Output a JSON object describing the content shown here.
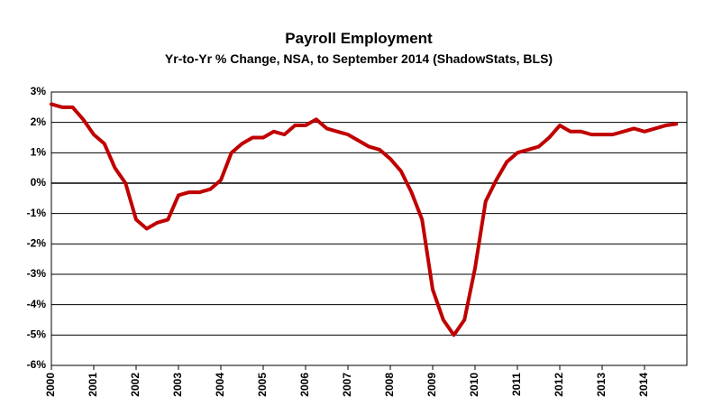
{
  "chart_data": {
    "type": "line",
    "title": "Payroll Employment",
    "subtitle": "Yr-to-Yr % Change, NSA, to September 2014 (ShadowStats, BLS)",
    "x": [
      2000,
      2000.25,
      2000.5,
      2000.75,
      2001,
      2001.25,
      2001.5,
      2001.75,
      2002,
      2002.25,
      2002.5,
      2002.75,
      2003,
      2003.25,
      2003.5,
      2003.75,
      2004,
      2004.25,
      2004.5,
      2004.75,
      2005,
      2005.25,
      2005.5,
      2005.75,
      2006,
      2006.25,
      2006.5,
      2006.75,
      2007,
      2007.25,
      2007.5,
      2007.75,
      2008,
      2008.25,
      2008.5,
      2008.75,
      2009,
      2009.25,
      2009.5,
      2009.75,
      2010,
      2010.25,
      2010.5,
      2010.75,
      2011,
      2011.25,
      2011.5,
      2011.75,
      2012,
      2012.25,
      2012.5,
      2012.75,
      2013,
      2013.25,
      2013.5,
      2013.75,
      2014,
      2014.25,
      2014.5,
      2014.75
    ],
    "series": [
      {
        "color": "#c00000",
        "values": [
          2.6,
          2.5,
          2.5,
          2.1,
          1.6,
          1.3,
          0.5,
          0.0,
          -1.2,
          -1.5,
          -1.3,
          -1.2,
          -0.4,
          -0.3,
          -0.3,
          -0.2,
          0.1,
          1.0,
          1.3,
          1.5,
          1.5,
          1.7,
          1.6,
          1.9,
          1.9,
          2.1,
          1.8,
          1.7,
          1.6,
          1.4,
          1.2,
          1.1,
          0.8,
          0.4,
          -0.3,
          -1.2,
          -3.5,
          -4.5,
          -5.0,
          -4.5,
          -2.8,
          -0.6,
          0.1,
          0.7,
          1.0,
          1.1,
          1.2,
          1.5,
          1.9,
          1.7,
          1.7,
          1.6,
          1.6,
          1.6,
          1.7,
          1.8,
          1.7,
          1.8,
          1.9,
          1.95
        ]
      }
    ],
    "xlim": [
      2000,
      2015
    ],
    "xticks": [
      2000,
      2001,
      2002,
      2003,
      2004,
      2005,
      2006,
      2007,
      2008,
      2009,
      2010,
      2011,
      2012,
      2013,
      2014
    ],
    "ylim": [
      -6,
      3
    ],
    "yticks": [
      {
        "value": -6,
        "label": "-6%"
      },
      {
        "value": -5,
        "label": "-5%"
      },
      {
        "value": -4,
        "label": "-4%"
      },
      {
        "value": -3,
        "label": "-3%"
      },
      {
        "value": -2,
        "label": "-2%"
      },
      {
        "value": -1,
        "label": "-1%"
      },
      {
        "value": 0,
        "label": "0%"
      },
      {
        "value": 1,
        "label": "1%"
      },
      {
        "value": 2,
        "label": "2%"
      },
      {
        "value": 3,
        "label": "3%"
      }
    ],
    "grid": true
  }
}
